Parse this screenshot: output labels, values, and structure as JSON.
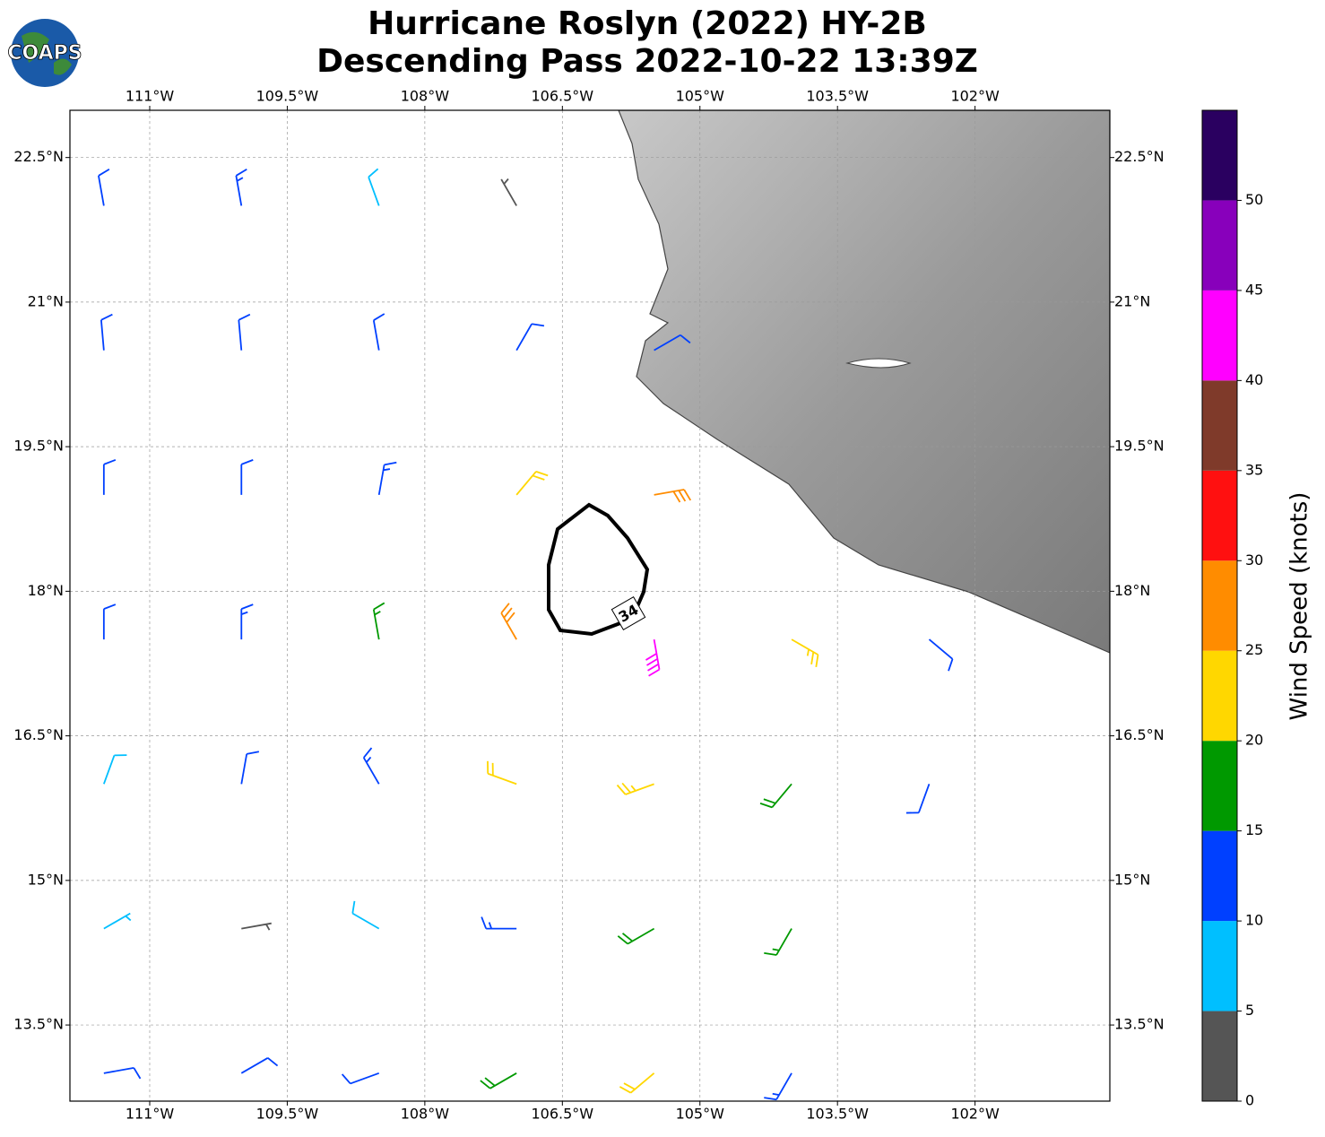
{
  "map": {
    "logo": "COAPS",
    "title": [
      "Hurricane Roslyn (2022) HY-2B",
      "Descending Pass 2022-10-22 13:39Z"
    ],
    "xlim": [
      -111.87,
      -100.53
    ],
    "ylim": [
      12.71,
      22.99
    ],
    "xticks": [
      {
        "value": -111,
        "label": "111°W"
      },
      {
        "value": -109.5,
        "label": "109.5°W"
      },
      {
        "value": -108,
        "label": "108°W"
      },
      {
        "value": -106.5,
        "label": "106.5°W"
      },
      {
        "value": -105,
        "label": "105°W"
      },
      {
        "value": -103.5,
        "label": "103.5°W"
      },
      {
        "value": -102,
        "label": "102°W"
      }
    ],
    "yticks": [
      {
        "value": 22.5,
        "label": "22.5°N"
      },
      {
        "value": 21,
        "label": "21°N"
      },
      {
        "value": 19.5,
        "label": "19.5°N"
      },
      {
        "value": 18,
        "label": "18°N"
      },
      {
        "value": 16.5,
        "label": "16.5°N"
      },
      {
        "value": 15,
        "label": "15°N"
      },
      {
        "value": 13.5,
        "label": "13.5°N"
      }
    ],
    "grid": true,
    "contour_label": "34",
    "wind": {
      "lons": [
        -111.5,
        -110,
        -108.5,
        -107,
        -105.5,
        -104,
        -102.5
      ],
      "lats": [
        22,
        20.5,
        19,
        17.5,
        16,
        14.5,
        13
      ],
      "speed": [
        [
          12,
          14,
          8,
          4,
          null,
          null,
          null
        ],
        [
          12,
          12,
          12,
          10,
          12,
          null,
          null
        ],
        [
          10,
          12,
          14,
          20,
          28,
          null,
          null
        ],
        [
          12,
          13,
          16,
          28,
          42,
          24,
          12
        ],
        [
          8,
          10,
          14,
          20,
          24,
          18,
          12
        ],
        [
          6,
          3,
          8,
          14,
          18,
          16,
          null
        ],
        [
          10,
          10,
          12,
          18,
          20,
          14,
          null
        ]
      ],
      "direction": [
        [
          350,
          350,
          340,
          330,
          null,
          null,
          null
        ],
        [
          355,
          355,
          350,
          30,
          60,
          null,
          null
        ],
        [
          0,
          0,
          10,
          40,
          80,
          null,
          null
        ],
        [
          0,
          0,
          350,
          330,
          170,
          120,
          130
        ],
        [
          20,
          10,
          330,
          290,
          250,
          220,
          200
        ],
        [
          60,
          80,
          300,
          270,
          240,
          210,
          null
        ],
        [
          80,
          60,
          250,
          240,
          230,
          210,
          null
        ]
      ]
    },
    "colorbar": {
      "label": "Wind Speed (knots)",
      "lim": [
        0,
        55
      ],
      "bounds": [
        0,
        5,
        10,
        15,
        20,
        25,
        30,
        35,
        40,
        45,
        50,
        55
      ],
      "colors": [
        "#555555",
        "#00bfff",
        "#0040ff",
        "#009900",
        "#ffd700",
        "#ff8c00",
        "#ff1010",
        "#7f3a2a",
        "#ff00ff",
        "#8800bb",
        "#2a0060"
      ],
      "ticks": [
        0,
        5,
        10,
        15,
        20,
        25,
        30,
        35,
        40,
        45,
        50
      ]
    }
  }
}
